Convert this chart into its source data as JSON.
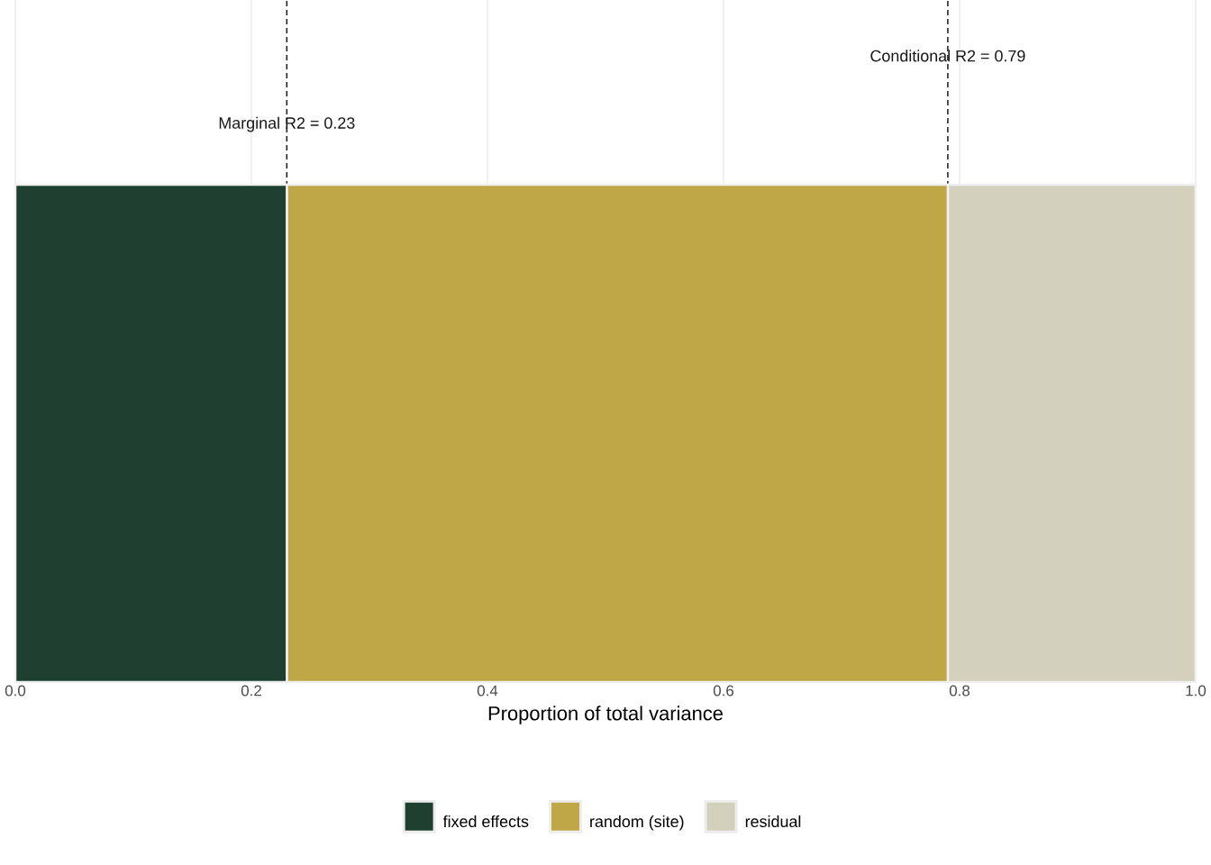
{
  "chart_data": {
    "type": "bar",
    "orientation": "horizontal",
    "stacked": true,
    "categories": [
      null
    ],
    "series": [
      {
        "name": "fixed effects",
        "color": "#1f4030",
        "values": [
          0.23
        ]
      },
      {
        "name": "random (site)",
        "color": "#bfa748",
        "values": [
          0.56
        ]
      },
      {
        "name": "residual",
        "color": "#d3d1bd",
        "values": [
          0.21
        ]
      }
    ],
    "xlim": [
      0,
      1
    ],
    "xticks": [
      {
        "value": 0,
        "label": "0.0"
      },
      0.2,
      0.4,
      0.6,
      0.8,
      {
        "value": 1,
        "label": "1.0"
      }
    ],
    "xlabel": "Proportion of total variance",
    "grid": "x",
    "legend": "bottom",
    "ref_lines": [
      {
        "axis": "x",
        "value": 0.23,
        "label": "Marginal R2 = 0.23",
        "color": "#1a1a1a",
        "line_style": "dashed"
      },
      {
        "axis": "x",
        "value": 0.79,
        "label": "Conditional R2 = 0.79",
        "color": "#1a1a1a",
        "line_style": "dashed"
      }
    ]
  }
}
